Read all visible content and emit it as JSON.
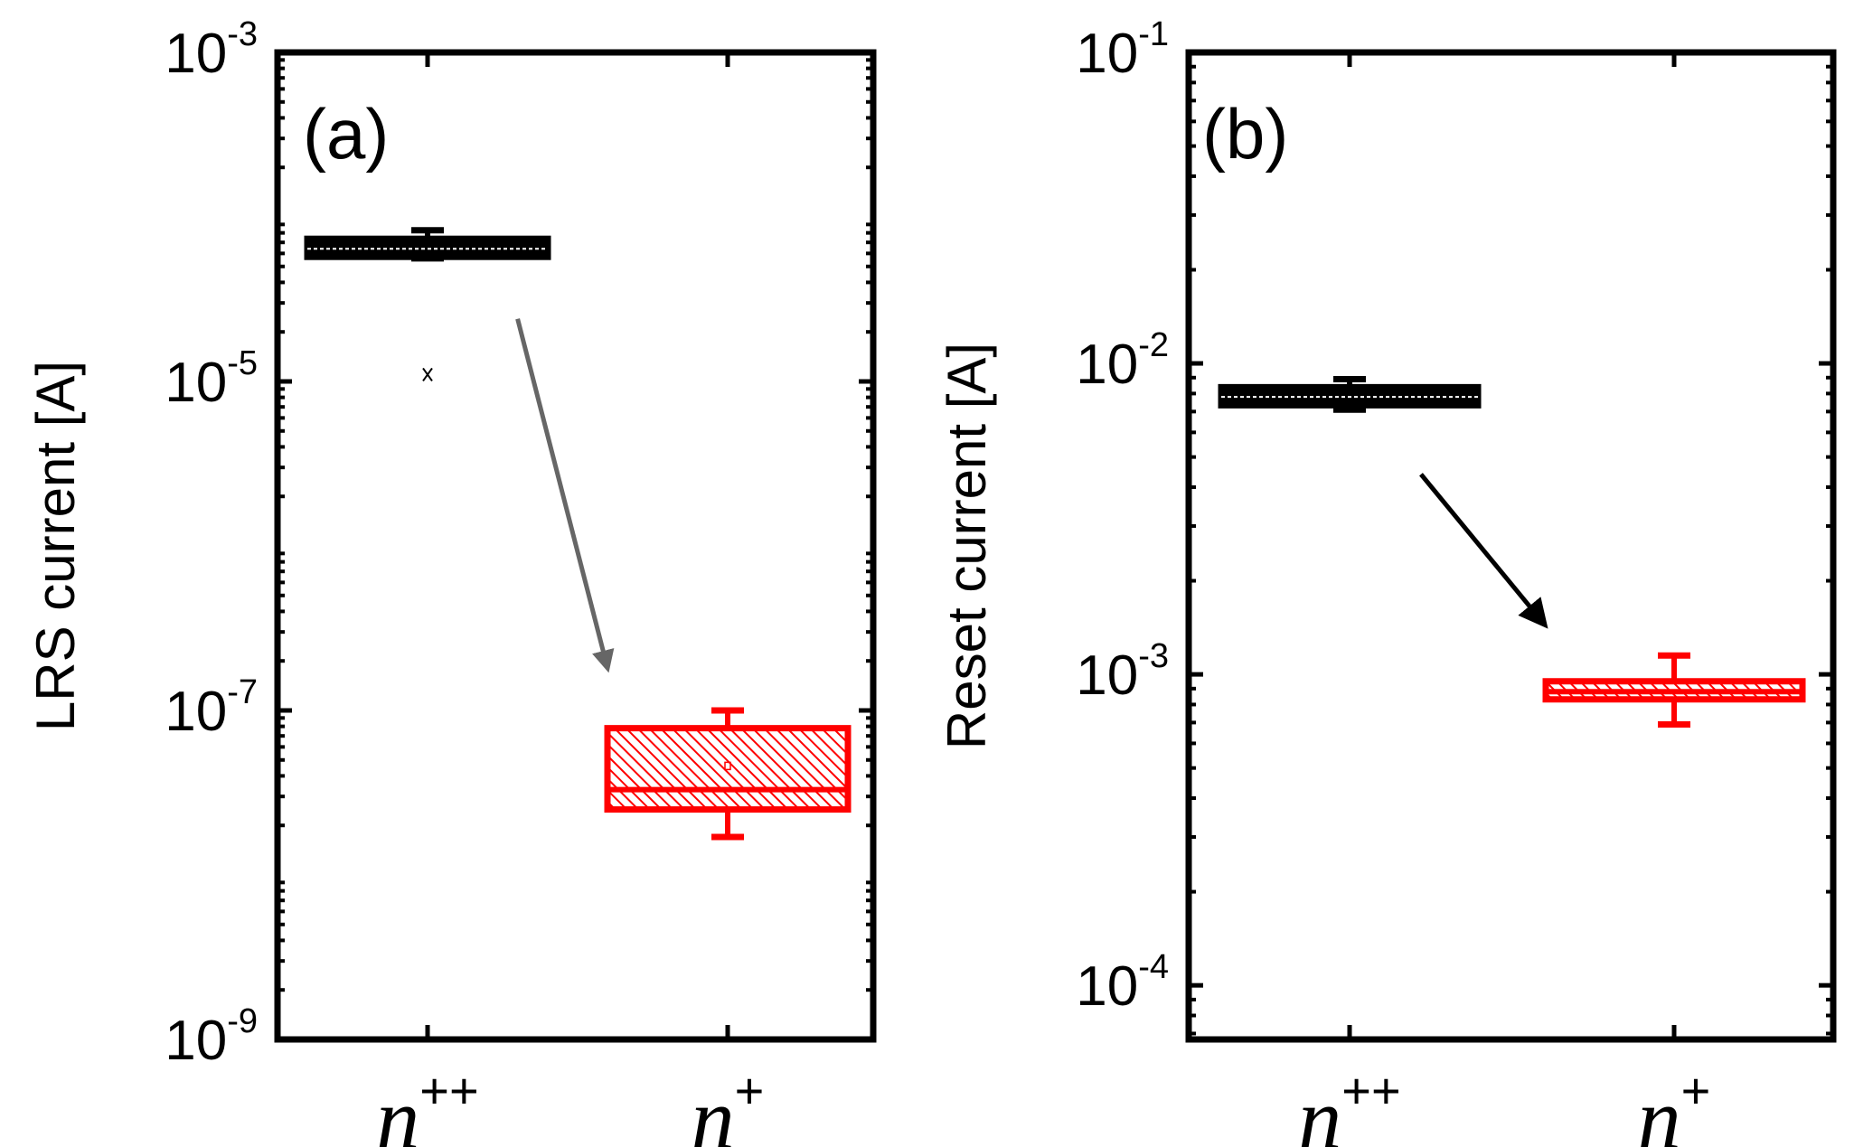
{
  "chart_data": [
    {
      "type": "box",
      "panel_label": "(a)",
      "ylabel": "LRS current [A]",
      "yscale": "log",
      "ylim": [
        1e-09,
        0.001
      ],
      "yticks": [
        {
          "base": "10",
          "exp": "-3"
        },
        {
          "base": "10",
          "exp": "-5"
        },
        {
          "base": "10",
          "exp": "-7"
        },
        {
          "base": "10",
          "exp": "-9"
        }
      ],
      "categories": [
        {
          "base": "n",
          "sup": "++"
        },
        {
          "base": "n",
          "sup": "+"
        }
      ],
      "boxes": [
        {
          "name": "n++",
          "color": "#000000",
          "whisker_low": 5.6e-05,
          "q1": 6.1e-05,
          "median": 6.4e-05,
          "q3": 6.9e-05,
          "whisker_high": 8.3e-05,
          "outliers": [
            1.1e-05
          ]
        },
        {
          "name": "n+",
          "color": "#ff0000",
          "whisker_low": 1.7e-08,
          "q1": 2.5e-08,
          "median": 3.3e-08,
          "q3": 7.8e-08,
          "whisker_high": 1e-07,
          "mean": 4.6e-08
        }
      ],
      "arrow": {
        "from": [
          1.3,
          2.4e-05
        ],
        "to": [
          1.6,
          1.8e-07
        ],
        "color": "#666666"
      }
    },
    {
      "type": "box",
      "panel_label": "(b)",
      "ylabel": "Reset current [A]",
      "yscale": "log",
      "ylim": [
        6.7e-05,
        0.1
      ],
      "yticks": [
        {
          "base": "10",
          "exp": "-1"
        },
        {
          "base": "10",
          "exp": "-2"
        },
        {
          "base": "10",
          "exp": "-3"
        },
        {
          "base": "10",
          "exp": "-4"
        }
      ],
      "categories": [
        {
          "base": "n",
          "sup": "++"
        },
        {
          "base": "n",
          "sup": "+"
        }
      ],
      "boxes": [
        {
          "name": "n++",
          "color": "#000000",
          "whisker_low": 0.0071,
          "q1": 0.0075,
          "median": 0.0078,
          "q3": 0.0082,
          "whisker_high": 0.0089
        },
        {
          "name": "n+",
          "color": "#ff0000",
          "whisker_low": 0.00069,
          "q1": 0.00084,
          "median": 0.00088,
          "q3": 0.00094,
          "whisker_high": 0.00115
        }
      ],
      "arrow": {
        "from": [
          1.22,
          0.0044
        ],
        "to": [
          1.6,
          0.00145
        ],
        "color": "#000000"
      }
    }
  ]
}
